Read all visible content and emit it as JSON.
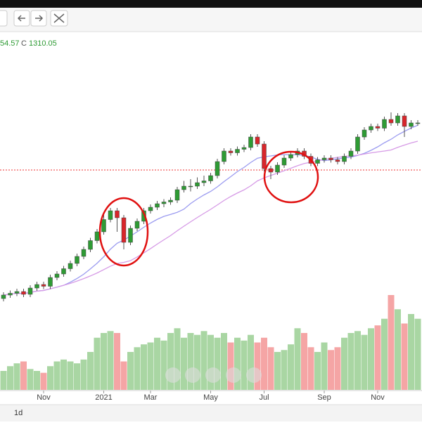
{
  "header": {
    "values": [
      "54.57",
      "C",
      "1310.05"
    ]
  },
  "toolbar": {
    "interval": "1d"
  },
  "chart_data": {
    "type": "candlestick",
    "categories": [
      null,
      null,
      null,
      null,
      null,
      null,
      "Nov",
      null,
      null,
      null,
      null,
      null,
      null,
      null,
      null,
      "2021",
      null,
      null,
      null,
      null,
      null,
      null,
      "Mar",
      null,
      null,
      null,
      null,
      null,
      null,
      null,
      null,
      "May",
      null,
      null,
      null,
      null,
      null,
      null,
      null,
      "Jul",
      null,
      null,
      null,
      null,
      null,
      null,
      null,
      null,
      "Sep",
      null,
      null,
      null,
      null,
      null,
      null,
      null,
      "Nov",
      null,
      null,
      null,
      null,
      null,
      null
    ],
    "open": [
      810,
      820,
      825,
      830,
      822,
      840,
      850,
      845,
      870,
      880,
      895,
      910,
      930,
      950,
      975,
      1000,
      1035,
      1060,
      1040,
      970,
      1010,
      1030,
      1060,
      1070,
      1080,
      1085,
      1090,
      1120,
      1130,
      1130,
      1140,
      1145,
      1160,
      1200,
      1230,
      1225,
      1235,
      1240,
      1270,
      1250,
      1180,
      1170,
      1190,
      1210,
      1220,
      1230,
      1215,
      1195,
      1205,
      1210,
      1205,
      1200,
      1215,
      1230,
      1270,
      1290,
      1300,
      1295,
      1320,
      1310,
      1330,
      1300,
      1310
    ],
    "high": [
      828,
      833,
      838,
      838,
      848,
      858,
      858,
      878,
      888,
      903,
      918,
      938,
      958,
      983,
      1008,
      1050,
      1068,
      1068,
      1048,
      1018,
      1038,
      1068,
      1078,
      1088,
      1093,
      1098,
      1128,
      1145,
      1150,
      1155,
      1160,
      1168,
      1208,
      1238,
      1238,
      1243,
      1248,
      1278,
      1278,
      1258,
      1188,
      1198,
      1218,
      1228,
      1238,
      1238,
      1223,
      1213,
      1218,
      1218,
      1213,
      1223,
      1238,
      1278,
      1298,
      1308,
      1308,
      1328,
      1340,
      1338,
      1338,
      1318,
      1318
    ],
    "low": [
      802,
      812,
      817,
      814,
      814,
      832,
      837,
      837,
      862,
      872,
      887,
      902,
      922,
      942,
      967,
      992,
      1027,
      1000,
      950,
      962,
      1002,
      1022,
      1052,
      1062,
      1070,
      1077,
      1082,
      1112,
      1115,
      1122,
      1130,
      1137,
      1152,
      1192,
      1217,
      1217,
      1227,
      1232,
      1242,
      1172,
      1150,
      1162,
      1182,
      1202,
      1212,
      1207,
      1187,
      1187,
      1197,
      1197,
      1192,
      1192,
      1207,
      1222,
      1262,
      1282,
      1287,
      1287,
      1302,
      1302,
      1270,
      1292,
      1302
    ],
    "close": [
      820,
      825,
      830,
      822,
      840,
      850,
      845,
      870,
      880,
      895,
      910,
      930,
      950,
      975,
      1000,
      1035,
      1060,
      1040,
      970,
      1010,
      1030,
      1060,
      1070,
      1080,
      1085,
      1090,
      1120,
      1130,
      1130,
      1140,
      1145,
      1160,
      1200,
      1230,
      1225,
      1235,
      1240,
      1270,
      1250,
      1180,
      1170,
      1190,
      1210,
      1220,
      1230,
      1215,
      1195,
      1205,
      1210,
      1205,
      1200,
      1215,
      1230,
      1270,
      1290,
      1300,
      1295,
      1320,
      1310,
      1330,
      1300,
      1310,
      1310.05
    ],
    "volume": [
      20,
      25,
      28,
      30,
      22,
      20,
      18,
      25,
      30,
      32,
      30,
      28,
      32,
      40,
      55,
      60,
      62,
      60,
      30,
      40,
      45,
      48,
      50,
      55,
      52,
      60,
      65,
      55,
      60,
      58,
      62,
      58,
      55,
      60,
      50,
      55,
      52,
      58,
      50,
      55,
      45,
      40,
      42,
      48,
      65,
      60,
      45,
      40,
      50,
      42,
      45,
      55,
      60,
      62,
      58,
      65,
      68,
      75,
      100,
      85,
      70,
      80,
      75
    ],
    "ylim": [
      600,
      1450
    ],
    "vlim": [
      0,
      100
    ],
    "reference_line": 1176,
    "up_color": "#2e9b34",
    "down_color": "#d8262b",
    "up_volume_color": "#a9d6a3",
    "down_volume_color": "#f5a5a5",
    "ma_colors": [
      "#9b9bf0",
      "#d69ae6"
    ]
  }
}
